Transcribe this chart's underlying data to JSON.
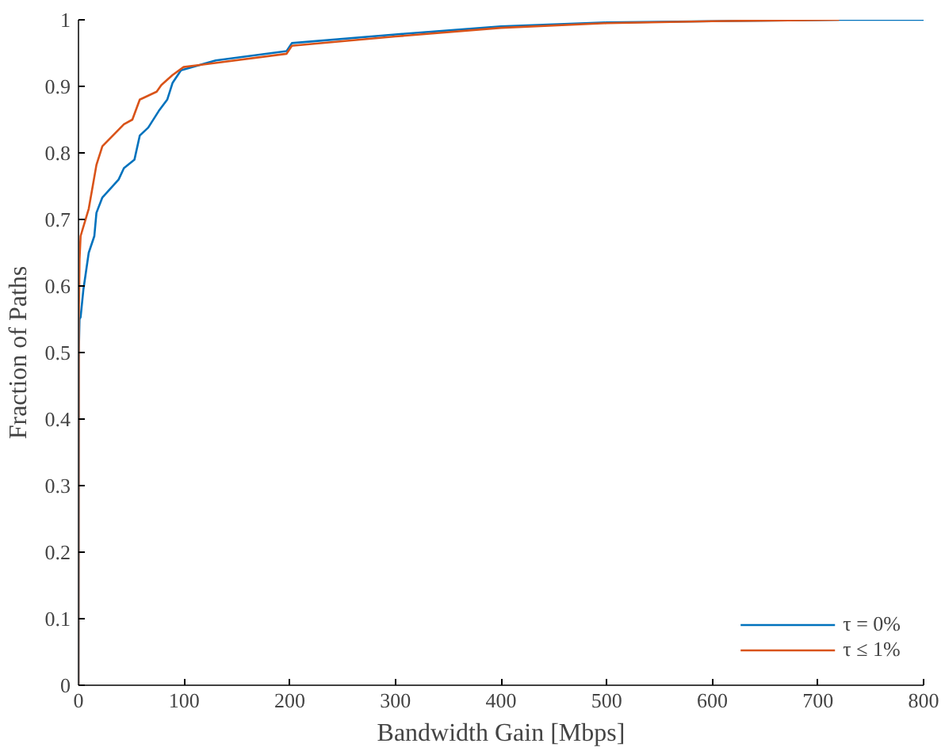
{
  "chart_data": {
    "type": "line",
    "xlabel": "Bandwidth Gain [Mbps]",
    "ylabel": "Fraction of Paths",
    "xlim": [
      0,
      800
    ],
    "ylim": [
      0,
      1
    ],
    "xticks": [
      0,
      100,
      200,
      300,
      400,
      500,
      600,
      700,
      800
    ],
    "yticks": [
      0,
      0.1,
      0.2,
      0.3,
      0.4,
      0.5,
      0.6,
      0.7,
      0.8,
      0.9,
      1
    ],
    "grid": false,
    "legend": "bottom right",
    "series": [
      {
        "name": "τ = 0%",
        "color": "#0072bd",
        "x": [
          0,
          0.3,
          1,
          2,
          4.6,
          9.7,
          15,
          17,
          22.6,
          38,
          43,
          53,
          58,
          66,
          76,
          84,
          89,
          97,
          130,
          197,
          202,
          300,
          400,
          500,
          600,
          720,
          800
        ],
        "values": [
          0,
          0.5,
          0.55,
          0.553,
          0.594,
          0.65,
          0.675,
          0.71,
          0.733,
          0.76,
          0.777,
          0.79,
          0.826,
          0.838,
          0.863,
          0.88,
          0.905,
          0.924,
          0.939,
          0.953,
          0.965,
          0.978,
          0.99,
          0.996,
          0.998,
          1,
          1
        ]
      },
      {
        "name": "τ ≤ 1%",
        "color": "#d95319",
        "x": [
          0,
          0.3,
          1,
          2,
          9.7,
          17,
          22.6,
          43,
          51,
          58,
          74,
          78.5,
          89,
          99.5,
          197,
          202,
          300,
          400,
          500,
          600,
          720
        ],
        "values": [
          0,
          0.55,
          0.64,
          0.675,
          0.716,
          0.782,
          0.81,
          0.843,
          0.85,
          0.88,
          0.892,
          0.902,
          0.917,
          0.929,
          0.949,
          0.961,
          0.975,
          0.988,
          0.995,
          0.998,
          1
        ]
      }
    ]
  }
}
